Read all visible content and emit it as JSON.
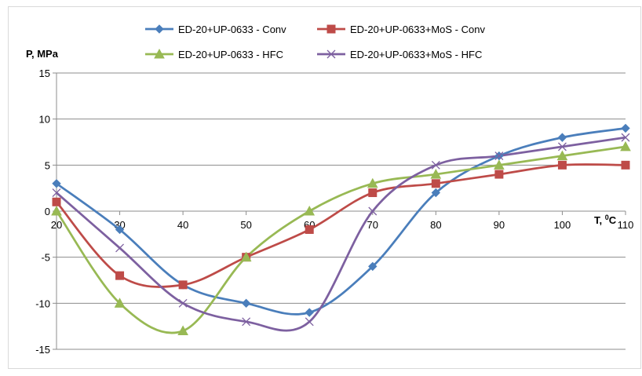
{
  "chart_data": {
    "type": "line",
    "title": "",
    "ylabel": "P, MPa",
    "xlabel": "T, ",
    "xlabel_unit_sup": "0",
    "xlabel_unit_tail": "C",
    "ylim": [
      -15,
      15
    ],
    "yticks": [
      -15,
      -10,
      -5,
      0,
      5,
      10,
      15
    ],
    "xlim": [
      20,
      110
    ],
    "x": [
      20,
      30,
      40,
      50,
      60,
      70,
      80,
      90,
      100,
      110
    ],
    "x_tick_labels": [
      "20",
      "30",
      "40",
      "50",
      "60",
      "70",
      "80",
      "90",
      "100",
      "110"
    ],
    "grid": "horizontal",
    "legend_position": "top",
    "series": [
      {
        "name": "ED-20+UP-0633 - Conv",
        "color": "#4a7ebb",
        "marker": "diamond",
        "values": [
          3,
          -2,
          -8,
          -10,
          -11,
          -6,
          2,
          6,
          8,
          9
        ]
      },
      {
        "name": "ED-20+UP-0633+MoS - Conv",
        "color": "#be4b48",
        "marker": "square",
        "values": [
          1,
          -7,
          -8,
          -5,
          -2,
          2,
          3,
          4,
          5,
          5
        ]
      },
      {
        "name": "ED-20+UP-0633 - HFC",
        "color": "#98b954",
        "marker": "triangle",
        "values": [
          0,
          -10,
          -13,
          -5,
          0,
          3,
          4,
          5,
          6,
          7
        ]
      },
      {
        "name": "ED-20+UP-0633+MoS - HFC",
        "color": "#7d60a0",
        "marker": "x",
        "values": [
          2,
          -4,
          -10,
          -12,
          -12,
          0,
          5,
          6,
          7,
          8
        ]
      }
    ]
  }
}
